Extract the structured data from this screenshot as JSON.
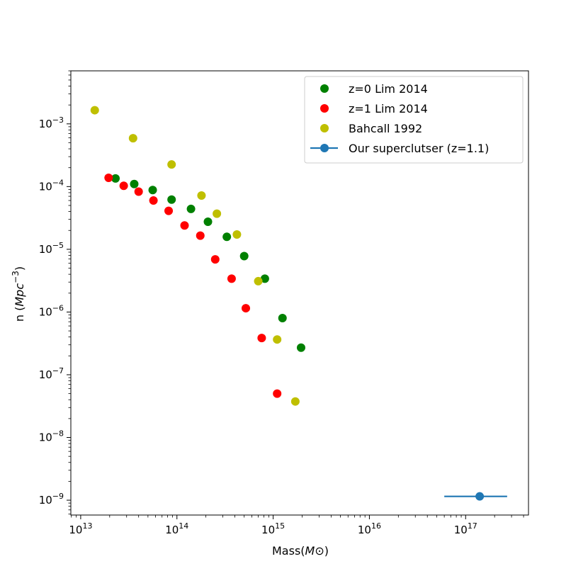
{
  "chart_data": {
    "type": "scatter",
    "xlabel": "Mass(M⊙)",
    "ylabel": "n (Mpc⁻³)",
    "xscale": "log",
    "yscale": "log",
    "xlim": [
      7900000000000.0,
      4.5e+17
    ],
    "ylim": [
      5.8e-10,
      0.007
    ],
    "x_ticks": [
      {
        "value": 10000000000000.0,
        "base": "10",
        "exp": "13"
      },
      {
        "value": 100000000000000.0,
        "base": "10",
        "exp": "14"
      },
      {
        "value": 1000000000000000.0,
        "base": "10",
        "exp": "15"
      },
      {
        "value": 1e+16,
        "base": "10",
        "exp": "16"
      },
      {
        "value": 1e+17,
        "base": "10",
        "exp": "17"
      }
    ],
    "y_ticks": [
      {
        "value": 1e-09,
        "base": "10",
        "exp": "−9"
      },
      {
        "value": 1e-08,
        "base": "10",
        "exp": "−8"
      },
      {
        "value": 1e-07,
        "base": "10",
        "exp": "−7"
      },
      {
        "value": 1e-06,
        "base": "10",
        "exp": "−6"
      },
      {
        "value": 1e-05,
        "base": "10",
        "exp": "−5"
      },
      {
        "value": 0.0001,
        "base": "10",
        "exp": "−4"
      },
      {
        "value": 0.001,
        "base": "10",
        "exp": "−3"
      }
    ],
    "grid": false,
    "legend_position": "top-right",
    "series": [
      {
        "name": "z=0 Lim 2014",
        "color": "#008000",
        "marker": "circle",
        "points": [
          [
            23000000000000.0,
            0.000135
          ],
          [
            36000000000000.0,
            0.00011
          ],
          [
            56000000000000.0,
            8.8e-05
          ],
          [
            88000000000000.0,
            6.2e-05
          ],
          [
            140000000000000.0,
            4.4e-05
          ],
          [
            210000000000000.0,
            2.75e-05
          ],
          [
            330000000000000.0,
            1.58e-05
          ],
          [
            500000000000000.0,
            7.8e-06
          ],
          [
            820000000000000.0,
            3.4e-06
          ],
          [
            1250000000000000.0,
            8e-07
          ],
          [
            1950000000000000.0,
            2.7e-07
          ]
        ]
      },
      {
        "name": "z=1 Lim 2014",
        "color": "#ff0000",
        "marker": "circle",
        "points": [
          [
            19500000000000.0,
            0.000138
          ],
          [
            28000000000000.0,
            0.000103
          ],
          [
            40000000000000.0,
            8.3e-05
          ],
          [
            57000000000000.0,
            6e-05
          ],
          [
            82000000000000.0,
            4.1e-05
          ],
          [
            120000000000000.0,
            2.4e-05
          ],
          [
            175000000000000.0,
            1.65e-05
          ],
          [
            250000000000000.0,
            6.9e-06
          ],
          [
            370000000000000.0,
            3.4e-06
          ],
          [
            520000000000000.0,
            1.15e-06
          ],
          [
            760000000000000.0,
            3.85e-07
          ],
          [
            1100000000000000.0,
            5e-08
          ]
        ]
      },
      {
        "name": "Bahcall 1992",
        "color": "#bfbf00",
        "marker": "circle",
        "points": [
          [
            14000000000000.0,
            0.00165
          ],
          [
            35000000000000.0,
            0.00059
          ],
          [
            88000000000000.0,
            0.000225
          ],
          [
            180000000000000.0,
            7.2e-05
          ],
          [
            260000000000000.0,
            3.7e-05
          ],
          [
            420000000000000.0,
            1.72e-05
          ],
          [
            700000000000000.0,
            3.1e-06
          ],
          [
            1100000000000000.0,
            3.65e-07
          ],
          [
            1700000000000000.0,
            3.75e-08
          ]
        ]
      },
      {
        "name": "Our superclutser (z=1.1)",
        "color": "#1f77b4",
        "marker": "circle-errorbar",
        "points": [
          [
            1.4e+17,
            1.15e-09
          ]
        ],
        "xerr": [
          [
            6e+16,
            2.7e+17
          ]
        ]
      }
    ]
  }
}
